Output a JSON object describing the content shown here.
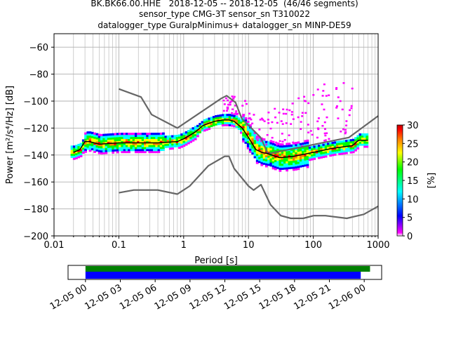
{
  "title": {
    "line1": "BK.BK66.00.HHE   2018-12-05 -- 2018-12-05  (46/46 segments)",
    "line2": "sensor_type CMG-3T sensor_sn T310022",
    "line3": "datalogger_type GuralpMinimus+ datalogger_sn MINP-DE59"
  },
  "chart_data": [
    {
      "type": "heatmap",
      "xlabel": "Period [s]",
      "ylabel": "Power [m²/s⁴/Hz] [dB]",
      "xscale": "log",
      "xlim": [
        0.01,
        1000
      ],
      "ylim": [
        -200,
        -50
      ],
      "grid": true,
      "x_ticks": [
        {
          "v": 0.01,
          "label": "0.01"
        },
        {
          "v": 0.1,
          "label": "0.1"
        },
        {
          "v": 1,
          "label": "1"
        },
        {
          "v": 10,
          "label": "10"
        },
        {
          "v": 100,
          "label": "100"
        },
        {
          "v": 1000,
          "label": "1000"
        }
      ],
      "y_ticks": [
        -60,
        -80,
        -100,
        -120,
        -140,
        -160,
        -180,
        -200
      ],
      "colorbar": {
        "label": "[%]",
        "range": [
          0,
          30
        ],
        "ticks": [
          0,
          5,
          10,
          15,
          20,
          25,
          30
        ],
        "colors": [
          "#ffffff",
          "#ff00ff",
          "#0000ff",
          "#00ffff",
          "#00ff00",
          "#ffff00",
          "#ff8000",
          "#ff0000",
          "#c00000"
        ]
      },
      "nhnm": {
        "color": "#666666",
        "x": [
          0.1,
          0.22,
          0.32,
          0.8,
          3.8,
          4.6,
          6.3,
          7.9,
          15.4,
          20,
          354.8,
          1000
        ],
        "y": [
          -91,
          -97,
          -110,
          -120,
          -98,
          -96,
          -101,
          -113,
          -127,
          -139,
          -127,
          -111
        ]
      },
      "nlnm": {
        "color": "#666666",
        "x": [
          0.1,
          0.17,
          0.4,
          0.8,
          1.24,
          2.4,
          4.3,
          5,
          6,
          10,
          12,
          15.6,
          21.9,
          31.6,
          45,
          70,
          101,
          154,
          328,
          600,
          1000
        ],
        "y": [
          -168,
          -166,
          -166,
          -169,
          -163,
          -148,
          -141,
          -141,
          -150,
          -163,
          -166,
          -162,
          -177,
          -185,
          -187,
          -187,
          -185,
          -185,
          -187,
          -184,
          -178
        ]
      },
      "mode": {
        "color": "#000000",
        "x": [
          0.02,
          0.025,
          0.03,
          0.035,
          0.05,
          0.1,
          0.2,
          0.4,
          0.8,
          1,
          1.5,
          2,
          3,
          4,
          5,
          6,
          8,
          10,
          13,
          16,
          20,
          30,
          50,
          100,
          200,
          400,
          500,
          700
        ],
        "y": [
          -138,
          -136,
          -130,
          -130,
          -132,
          -131,
          -131,
          -131,
          -130,
          -128,
          -123,
          -118,
          -115,
          -114,
          -114,
          -115,
          -120,
          -127,
          -136,
          -138,
          -139,
          -142,
          -141,
          -138,
          -135,
          -133,
          -129,
          -129
        ]
      }
    },
    {
      "type": "timeline",
      "x_tick_labels": [
        "12-05 00",
        "12-05 03",
        "12-05 06",
        "12-05 09",
        "12-05 12",
        "12-05 15",
        "12-05 18",
        "12-05 21",
        "12-06 00"
      ],
      "data_coverage": {
        "color": "#008000",
        "start_hour": 0,
        "end_hour": 24.5
      },
      "psd_coverage": {
        "color": "#0000ff",
        "start_hour": 0,
        "end_hour": 23.7
      }
    }
  ]
}
